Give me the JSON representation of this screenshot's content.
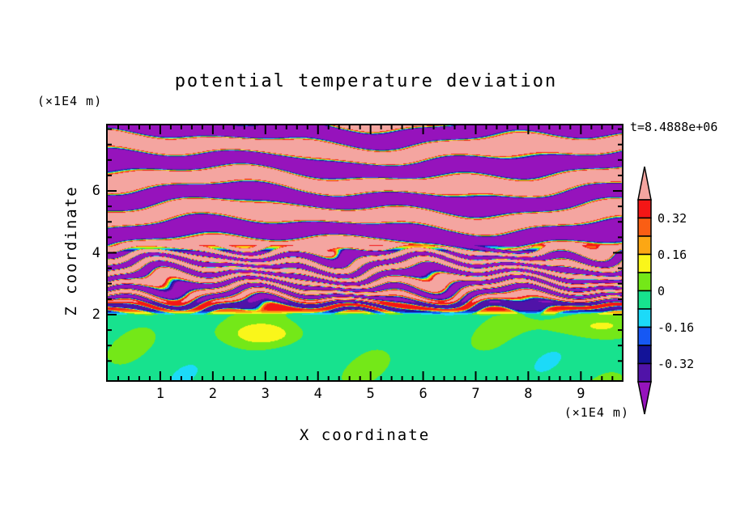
{
  "title": "potential temperature deviation",
  "time_label": "t=8.4888e+06",
  "x_axis": {
    "label": "X coordinate",
    "unit_label": "(×1E4 m)",
    "tick_labels": [
      "1",
      "2",
      "3",
      "4",
      "5",
      "6",
      "7",
      "8",
      "9"
    ],
    "min": 0,
    "max": 9.78,
    "major_step": 1,
    "minor_step": 0.2
  },
  "z_axis": {
    "label": "Z coordinate",
    "unit_label": "(×1E4 m)",
    "tick_labels": [
      "2",
      "4",
      "6"
    ],
    "min": -0.12,
    "max": 8.12,
    "major_step": 2,
    "minor_step": 0.5
  },
  "colorbar": {
    "tick_labels": [
      "0.32",
      "0.16",
      "0",
      "-0.16",
      "-0.32"
    ]
  },
  "chart_data": {
    "type": "filled_contour",
    "title": "potential temperature deviation",
    "xlabel": "X coordinate",
    "ylabel": "Z coordinate",
    "x_unit": "(×1E4 m)",
    "z_unit": "(×1E4 m)",
    "time_label": "t=8.4888e+06",
    "xlim": [
      0,
      9.78
    ],
    "zlim": [
      -0.12,
      8.12
    ],
    "x_ticks": [
      1,
      2,
      3,
      4,
      5,
      6,
      7,
      8,
      9
    ],
    "z_ticks": [
      2,
      4,
      6
    ],
    "contour_levels": [
      -0.4,
      -0.32,
      -0.24,
      -0.16,
      -0.08,
      0,
      0.08,
      0.16,
      0.24,
      0.32,
      0.4
    ],
    "colorbar_labeled_levels": [
      0.32,
      0.16,
      0,
      -0.16,
      -0.32
    ],
    "palette": [
      {
        "name": "under-purple",
        "hex": "#9613BC",
        "range": [
          "-inf",
          -0.4
        ]
      },
      {
        "name": "indigo",
        "hex": "#5013A8",
        "range": [
          -0.4,
          -0.32
        ]
      },
      {
        "name": "navy",
        "hex": "#131398",
        "range": [
          -0.32,
          -0.24
        ]
      },
      {
        "name": "blue",
        "hex": "#1658F4",
        "range": [
          -0.24,
          -0.16
        ]
      },
      {
        "name": "cyan",
        "hex": "#1CDAF8",
        "range": [
          -0.16,
          -0.08
        ]
      },
      {
        "name": "spring-green",
        "hex": "#17E28E",
        "range": [
          -0.08,
          0
        ]
      },
      {
        "name": "chartreuse",
        "hex": "#74E818",
        "range": [
          0,
          0.08
        ]
      },
      {
        "name": "yellow",
        "hex": "#FAF61A",
        "range": [
          0.08,
          0.16
        ]
      },
      {
        "name": "orange",
        "hex": "#FCA714",
        "range": [
          0.16,
          0.24
        ]
      },
      {
        "name": "orange-red",
        "hex": "#FA5E14",
        "range": [
          0.24,
          0.32
        ]
      },
      {
        "name": "red",
        "hex": "#F41616",
        "range": [
          0.32,
          0.4
        ]
      },
      {
        "name": "over-pink",
        "hex": "#F4A5A0",
        "range": [
          0.4,
          "inf"
        ]
      }
    ],
    "regions": [
      {
        "z_range": [
          4.2,
          8.12
        ],
        "structure": "large-amplitude wavy horizontal bands alternating above +0.40 (pink) and below -0.40 (purple), thin rainbow fringes at band edges",
        "band_period_z": 1.1
      },
      {
        "z_range": [
          2.0,
          4.2
        ],
        "structure": "fine turbulent layering of thin stripes spanning the full color range",
        "stripe_period_z": 0.34
      },
      {
        "z_range": [
          -0.12,
          2.0
        ],
        "structure": "weak deviation near zero: spring-green base with chartreuse patches and a yellow patch near x=3, z=1.4"
      }
    ],
    "field_model": {
      "upper": {
        "amp": 0.56,
        "period": 1.1,
        "phase_z": -0.525,
        "sat": 4,
        "wobble": [
          [
            0.2,
            0.72,
            0.55,
            0
          ],
          [
            0.12,
            1.65,
            -1.1,
            1.3
          ],
          [
            0.07,
            3.1,
            2.2,
            0.5
          ]
        ]
      },
      "mid": {
        "amp_base": 0.36,
        "amp_slope": 0.1,
        "period": 0.34,
        "phase": 0.9,
        "sat": 3,
        "wobble": [
          [
            0.2,
            1.25,
            2.4,
            0.7
          ],
          [
            0.13,
            2.6,
            -1.7,
            2.1
          ],
          [
            0.07,
            4.8,
            3.4,
            0
          ]
        ]
      },
      "lower": {
        "base": -0.035,
        "amp": 0.05,
        "s1": [
          0.85,
          0.9,
          0.3
        ],
        "s2": [
          1.9,
          -1.3,
          2.0
        ],
        "blobs": [
          {
            "x": 3.05,
            "z": 1.35,
            "amp": 0.16,
            "sx": 0.6,
            "sz": 0.18
          },
          {
            "x": 9.3,
            "z": 1.6,
            "amp": 0.11,
            "sx": 1.0,
            "sz": 0.15
          }
        ]
      },
      "blend_lower_mid": [
        1.95,
        2.2
      ],
      "blend_mid_upper": [
        3.95,
        4.35
      ]
    }
  }
}
